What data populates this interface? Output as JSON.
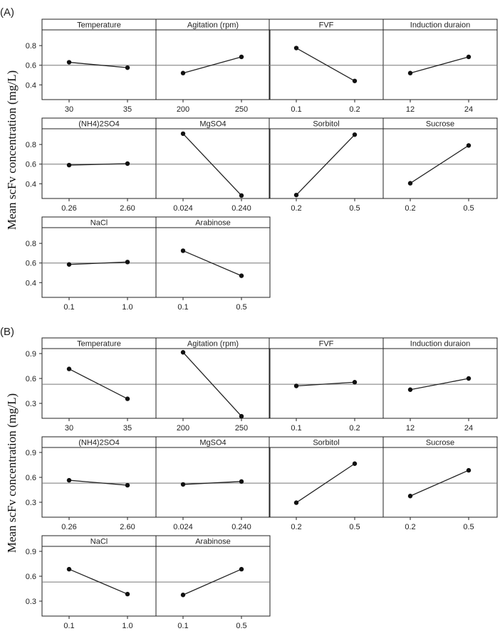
{
  "chart_data": [
    {
      "type": "line",
      "panel_label": "(A)",
      "ylabel": "Mean scFv concentration (mg/L)",
      "ylim": [
        0.25,
        0.96
      ],
      "yticks": [
        0.4,
        0.6,
        0.8
      ],
      "ytick_labels": [
        "0.4",
        "0.6",
        "0.8"
      ],
      "reference_line": 0.6,
      "subplots": [
        {
          "title": "Temperature",
          "categories": [
            "30",
            "35"
          ],
          "values": [
            0.63,
            0.575
          ]
        },
        {
          "title": "Agitation (rpm)",
          "categories": [
            "200",
            "250"
          ],
          "values": [
            0.52,
            0.685
          ]
        },
        {
          "title": "FVF",
          "categories": [
            "0.1",
            "0.2"
          ],
          "values": [
            0.775,
            0.44
          ]
        },
        {
          "title": "Induction duraion",
          "categories": [
            "12",
            "24"
          ],
          "values": [
            0.52,
            0.685
          ]
        },
        {
          "title": "(NH4)2SO4",
          "categories": [
            "0.26",
            "2.60"
          ],
          "values": [
            0.59,
            0.605
          ]
        },
        {
          "title": "MgSO4",
          "categories": [
            "0.024",
            "0.240"
          ],
          "values": [
            0.91,
            0.28
          ]
        },
        {
          "title": "Sorbitol",
          "categories": [
            "0.2",
            "0.5"
          ],
          "values": [
            0.285,
            0.9
          ]
        },
        {
          "title": "Sucrose",
          "categories": [
            "0.2",
            "0.5"
          ],
          "values": [
            0.405,
            0.79
          ]
        },
        {
          "title": "NaCl",
          "categories": [
            "0.1",
            "1.0"
          ],
          "values": [
            0.585,
            0.61
          ]
        },
        {
          "title": "Arabinose",
          "categories": [
            "0.1",
            "0.5"
          ],
          "values": [
            0.725,
            0.47
          ]
        }
      ]
    },
    {
      "type": "line",
      "panel_label": "(B)",
      "ylabel": "Mean scFv concentration (mg/L)",
      "ylim": [
        0.12,
        0.96
      ],
      "yticks": [
        0.3,
        0.6,
        0.9
      ],
      "ytick_labels": [
        "0.3",
        "0.6",
        "0.9"
      ],
      "reference_line": 0.53,
      "subplots": [
        {
          "title": "Temperature",
          "categories": [
            "30",
            "35"
          ],
          "values": [
            0.715,
            0.355
          ]
        },
        {
          "title": "Agitation (rpm)",
          "categories": [
            "200",
            "250"
          ],
          "values": [
            0.915,
            0.145
          ]
        },
        {
          "title": "FVF",
          "categories": [
            "0.1",
            "0.2"
          ],
          "values": [
            0.51,
            0.555
          ]
        },
        {
          "title": "Induction duraion",
          "categories": [
            "12",
            "24"
          ],
          "values": [
            0.465,
            0.6
          ]
        },
        {
          "title": "(NH4)2SO4",
          "categories": [
            "0.26",
            "2.60"
          ],
          "values": [
            0.565,
            0.505
          ]
        },
        {
          "title": "MgSO4",
          "categories": [
            "0.024",
            "0.240"
          ],
          "values": [
            0.515,
            0.55
          ]
        },
        {
          "title": "Sorbitol",
          "categories": [
            "0.2",
            "0.5"
          ],
          "values": [
            0.295,
            0.765
          ]
        },
        {
          "title": "Sucrose",
          "categories": [
            "0.2",
            "0.5"
          ],
          "values": [
            0.375,
            0.685
          ]
        },
        {
          "title": "NaCl",
          "categories": [
            "0.1",
            "1.0"
          ],
          "values": [
            0.685,
            0.385
          ]
        },
        {
          "title": "Arabinose",
          "categories": [
            "0.1",
            "0.5"
          ],
          "values": [
            0.375,
            0.685
          ]
        }
      ]
    }
  ]
}
